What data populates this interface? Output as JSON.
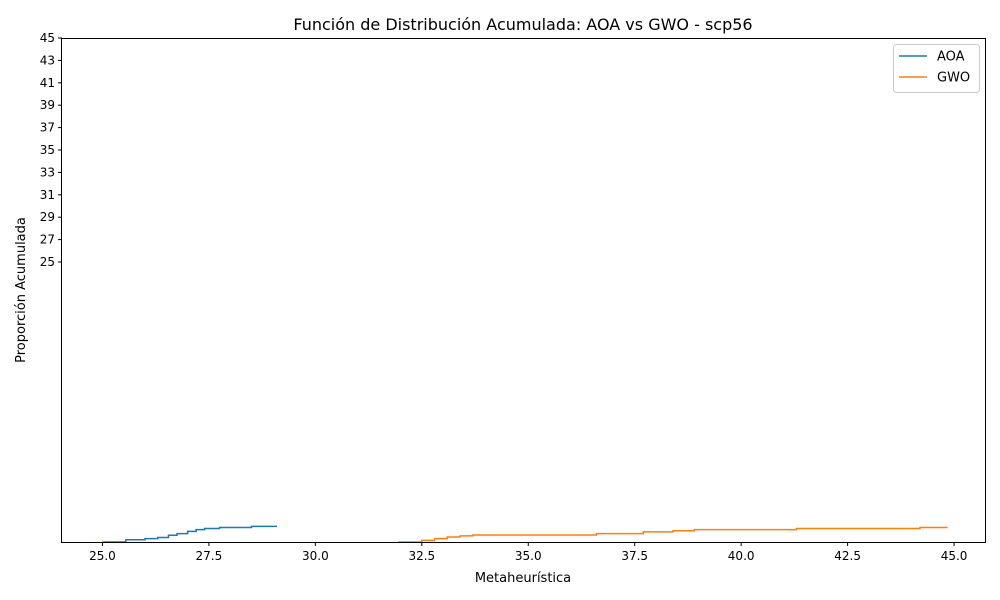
{
  "chart_data": {
    "type": "line",
    "title": "Función de Distribución Acumulada: AOA vs GWO - scp56",
    "xlabel": "Metaheurística",
    "ylabel": "Proporción Acumulada",
    "xlim": [
      24.05,
      45.75
    ],
    "ylim": [
      0,
      45
    ],
    "x_ticks": [
      25.0,
      27.5,
      30.0,
      32.5,
      35.0,
      37.5,
      40.0,
      42.5,
      45.0
    ],
    "x_tick_labels": [
      "25.0",
      "27.5",
      "30.0",
      "32.5",
      "35.0",
      "37.5",
      "40.0",
      "42.5",
      "45.0"
    ],
    "y_ticks": [
      25,
      27,
      29,
      31,
      33,
      35,
      37,
      39,
      41,
      43,
      45
    ],
    "y_tick_labels": [
      "25",
      "27",
      "29",
      "31",
      "33",
      "35",
      "37",
      "39",
      "41",
      "43",
      "45"
    ],
    "grid": false,
    "legend_position": "top-right",
    "step": true,
    "series": [
      {
        "name": "AOA",
        "color": "#1f77b4",
        "x": [
          25.0,
          25.55,
          26.0,
          26.3,
          26.55,
          26.75,
          27.0,
          27.2,
          27.4,
          27.75,
          28.5,
          29.1
        ],
        "y": [
          0.0,
          0.2,
          0.3,
          0.4,
          0.6,
          0.75,
          0.95,
          1.1,
          1.2,
          1.3,
          1.4,
          1.4
        ]
      },
      {
        "name": "GWO",
        "color": "#ff7f0e",
        "x": [
          31.95,
          32.5,
          32.8,
          33.1,
          33.4,
          33.7,
          36.6,
          37.7,
          38.4,
          38.9,
          41.3,
          44.2,
          44.85
        ],
        "y": [
          0.0,
          0.15,
          0.3,
          0.45,
          0.55,
          0.62,
          0.75,
          0.9,
          1.0,
          1.1,
          1.2,
          1.3,
          1.3
        ]
      }
    ]
  }
}
